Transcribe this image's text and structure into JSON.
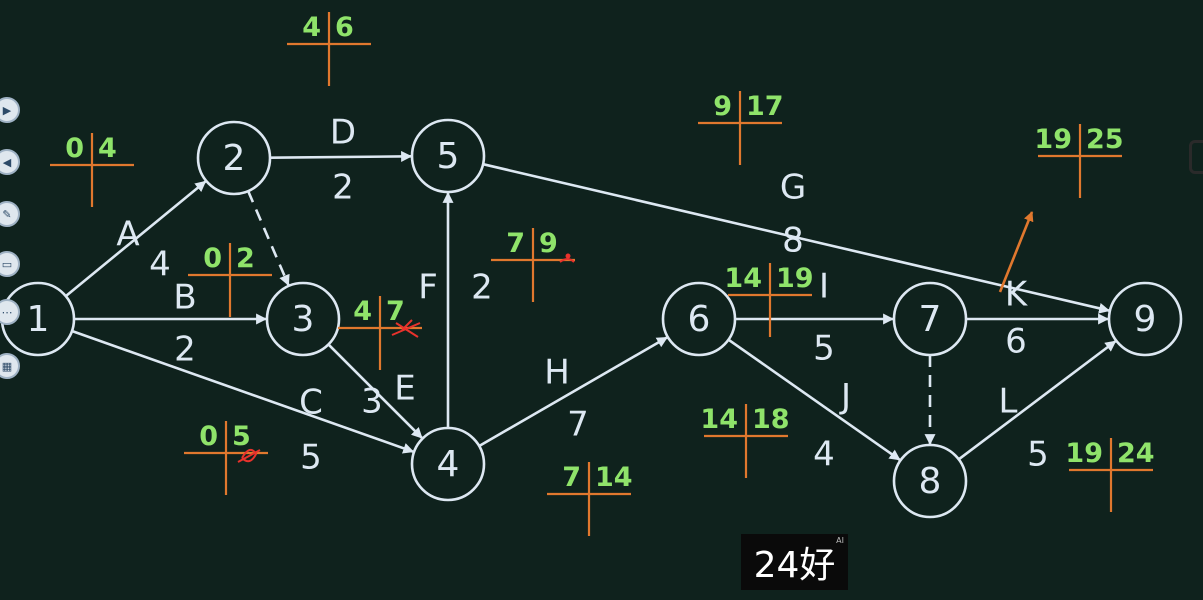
{
  "colors": {
    "background": "#0f221d",
    "line": "#dde8f2",
    "green": "#8fe36a",
    "orange": "#e0782e",
    "red": "#e8322c"
  },
  "nodes": [
    "1",
    "2",
    "3",
    "4",
    "5",
    "6",
    "7",
    "8",
    "9"
  ],
  "edges": [
    {
      "from": "1",
      "to": "2",
      "label": "A",
      "duration": "4"
    },
    {
      "from": "1",
      "to": "3",
      "label": "B",
      "duration": "2"
    },
    {
      "from": "1",
      "to": "4",
      "label": "C",
      "duration": "5"
    },
    {
      "from": "2",
      "to": "5",
      "label": "D",
      "duration": "2"
    },
    {
      "from": "2",
      "to": "3",
      "dashed": true
    },
    {
      "from": "3",
      "to": "4",
      "label": "E",
      "duration": "3"
    },
    {
      "from": "4",
      "to": "5",
      "label": "F",
      "duration": "2"
    },
    {
      "from": "4",
      "to": "6",
      "label": "H",
      "duration": "7"
    },
    {
      "from": "5",
      "to": "9",
      "label": "G",
      "duration": "8"
    },
    {
      "from": "6",
      "to": "7",
      "label": "I",
      "duration": "5"
    },
    {
      "from": "6",
      "to": "8",
      "label": "J",
      "duration": "4"
    },
    {
      "from": "7",
      "to": "9",
      "label": "K",
      "duration": "6"
    },
    {
      "from": "7",
      "to": "8",
      "dashed": true
    },
    {
      "from": "8",
      "to": "9",
      "label": "L",
      "duration": "5"
    }
  ],
  "time_crosses": [
    {
      "edge": "A",
      "left": "0",
      "right": "4"
    },
    {
      "edge": "B",
      "left": "0",
      "right": "2"
    },
    {
      "edge": "C",
      "left": "0",
      "right": "5"
    },
    {
      "edge": "D",
      "left": "4",
      "right": "6"
    },
    {
      "edge": "E",
      "left": "4",
      "right": "7"
    },
    {
      "edge": "F",
      "left": "7",
      "right": "9"
    },
    {
      "edge": "H",
      "left": "7",
      "right": "14"
    },
    {
      "edge": "G",
      "left": "9",
      "right": "17"
    },
    {
      "edge": "I",
      "left": "14",
      "right": "19"
    },
    {
      "edge": "J",
      "left": "14",
      "right": "18"
    },
    {
      "edge": "K",
      "left": "19",
      "right": "25"
    },
    {
      "edge": "L",
      "left": "19",
      "right": "24"
    }
  ],
  "subtitle": "24好",
  "subtitle_tag": "AI",
  "toolbar_icons": [
    "play-icon",
    "back-icon",
    "pen-icon",
    "screen-icon",
    "more-icon",
    "grid-icon"
  ]
}
